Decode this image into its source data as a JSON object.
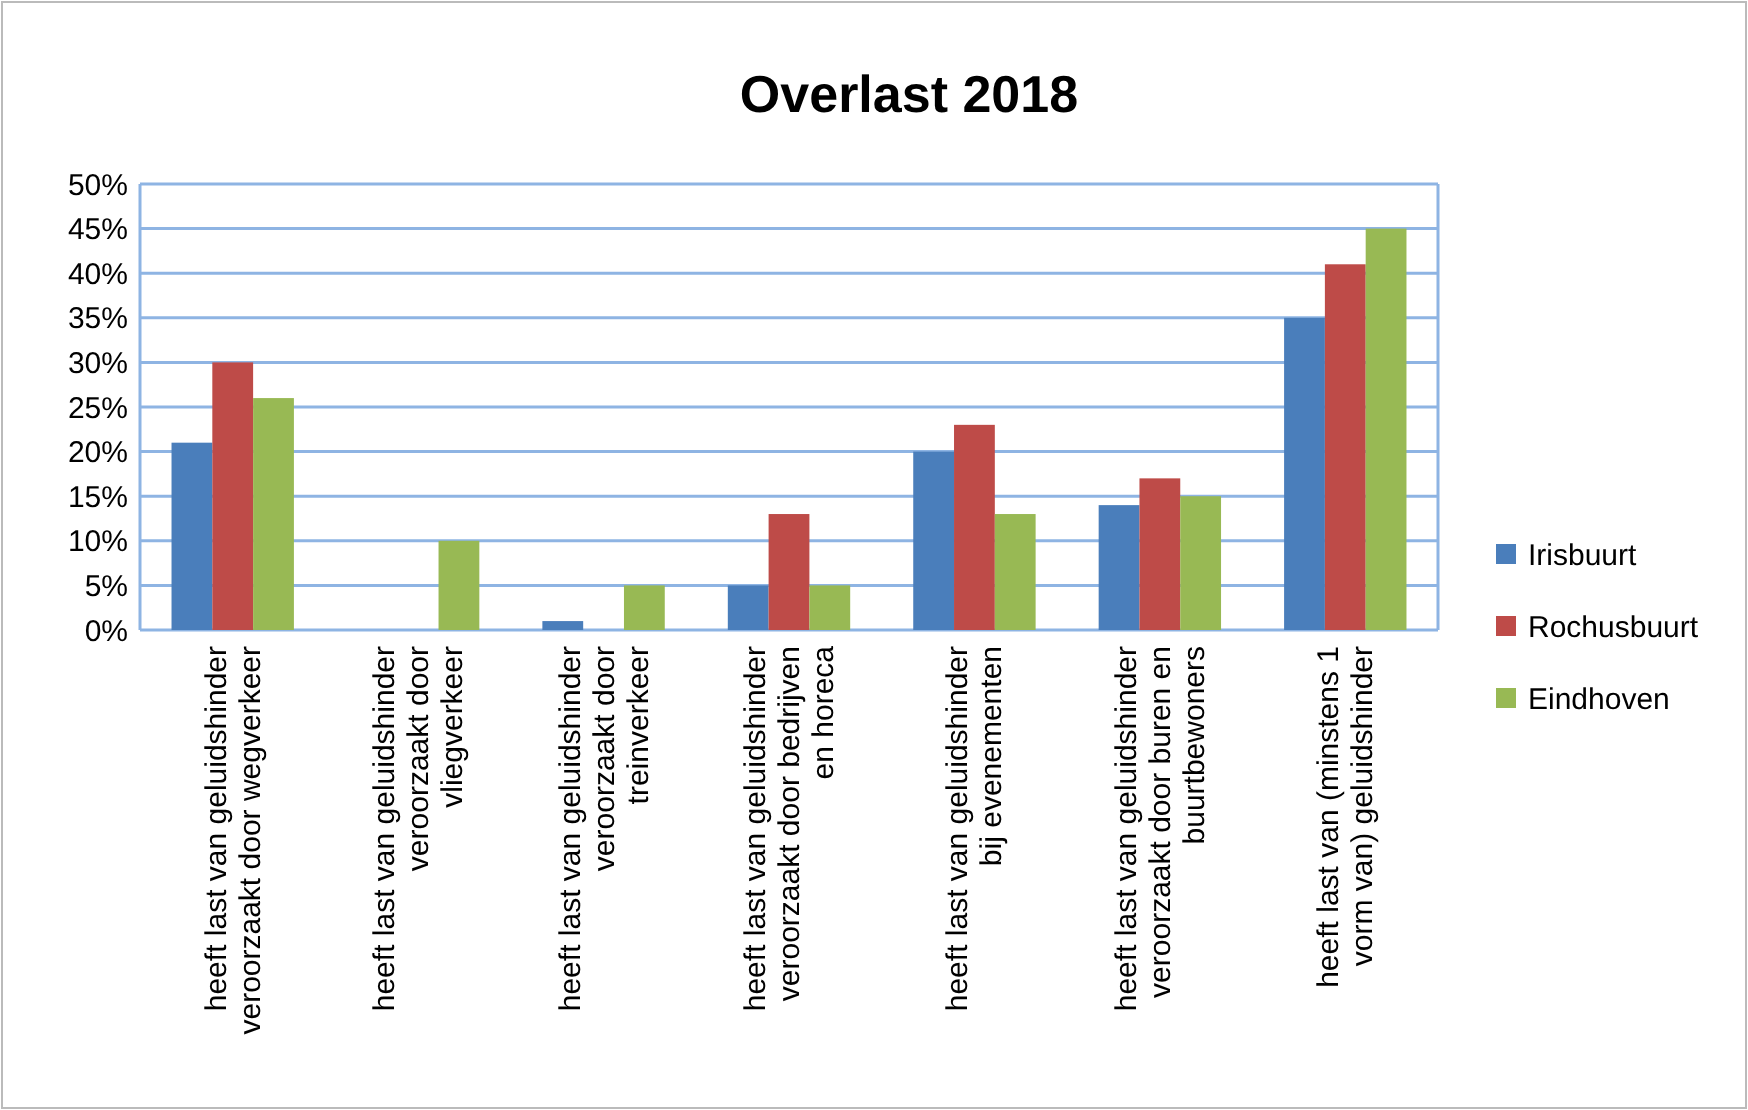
{
  "chart_data": {
    "type": "bar",
    "title": "Overlast 2018",
    "categories": [
      "heeft last van geluidshinder veroorzaakt door wegverkeer",
      "heeft last van geluidshinder veroorzaakt door vliegverkeer",
      "heeft last van geluidshinder veroorzaakt door treinverkeer",
      "heeft last van geluidshinder veroorzaakt door bedrijven en horeca",
      "heeft last van geluidshinder bij evenementen",
      "heeft last van geluidshinder veroorzaakt door buren en buurtbewoners",
      "heeft last van (minstens 1 vorm van) geluidshinder"
    ],
    "series": [
      {
        "name": "Irisbuurt",
        "color": "#4a7ebb",
        "values": [
          21,
          0,
          1,
          5,
          20,
          14,
          35
        ]
      },
      {
        "name": "Rochusbuurt",
        "color": "#be4b48",
        "values": [
          30,
          0,
          0,
          13,
          23,
          17,
          41
        ]
      },
      {
        "name": "Eindhoven",
        "color": "#98b954",
        "values": [
          26,
          10,
          5,
          5,
          13,
          15,
          45
        ]
      }
    ],
    "ylim": [
      0,
      50
    ],
    "yticks": [
      {
        "value": 0,
        "label": "0%"
      },
      {
        "value": 5,
        "label": "5%"
      },
      {
        "value": 10,
        "label": "10%"
      },
      {
        "value": 15,
        "label": "15%"
      },
      {
        "value": 20,
        "label": "20%"
      },
      {
        "value": 25,
        "label": "25%"
      },
      {
        "value": 30,
        "label": "30%"
      },
      {
        "value": 35,
        "label": "35%"
      },
      {
        "value": 40,
        "label": "40%"
      },
      {
        "value": 45,
        "label": "45%"
      },
      {
        "value": 50,
        "label": "50%"
      }
    ],
    "grid": "y",
    "legend": "right"
  }
}
